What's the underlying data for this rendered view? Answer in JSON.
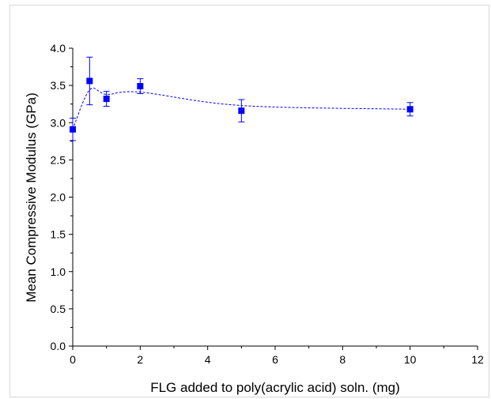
{
  "chart_data": {
    "type": "scatter",
    "title": "",
    "xlabel": "FLG added to poly(acrylic acid) soln. (mg)",
    "ylabel": "Mean Compressive Modulus (GPa)",
    "xlim": [
      0,
      12
    ],
    "ylim": [
      0.0,
      4.0
    ],
    "x_ticks": [
      "0",
      "2",
      "4",
      "6",
      "8",
      "10",
      "12"
    ],
    "y_ticks": [
      "0.0",
      "0.5",
      "1.0",
      "1.5",
      "2.0",
      "2.5",
      "3.0",
      "3.5",
      "4.0"
    ],
    "grid": false,
    "legend": "none",
    "series": [
      {
        "marker": "square",
        "color": "#0000ff",
        "x": [
          0,
          0.5,
          1,
          2,
          5,
          10
        ],
        "y": [
          2.91,
          3.56,
          3.32,
          3.49,
          3.16,
          3.18
        ],
        "error": [
          0.15,
          0.32,
          0.1,
          0.1,
          0.15,
          0.09
        ]
      }
    ],
    "fit_curve": {
      "style": "dashed",
      "color": "#0000ff",
      "x": [
        0,
        0.5,
        1,
        2,
        5,
        10
      ],
      "y": [
        2.91,
        3.44,
        3.38,
        3.41,
        3.23,
        3.18
      ]
    }
  }
}
